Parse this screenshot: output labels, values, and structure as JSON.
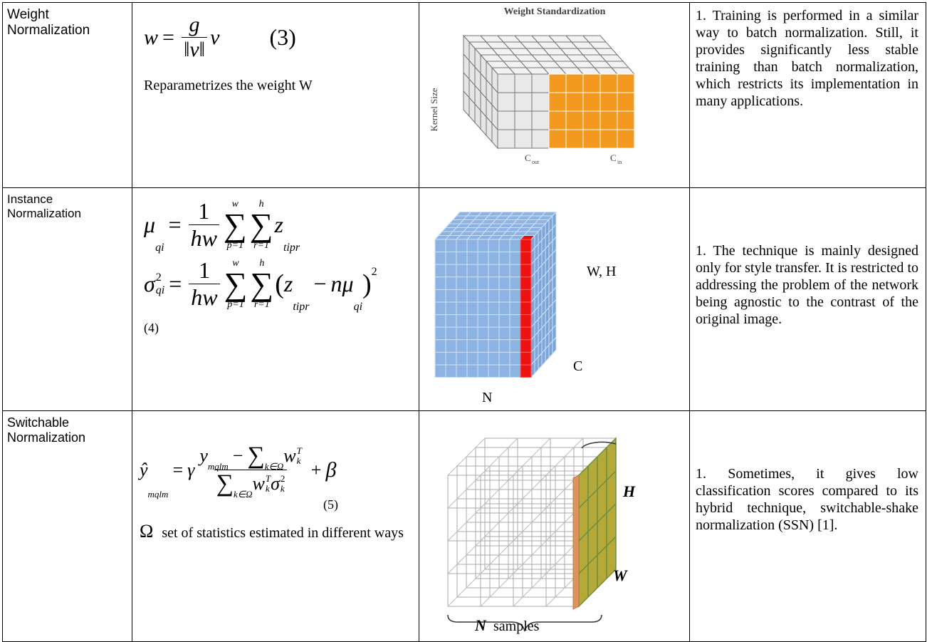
{
  "rows": [
    {
      "name": [
        "Weight",
        "Normalization"
      ],
      "formula": {
        "lhs": "w",
        "eq": "=",
        "num": "g",
        "den": "‖v‖",
        "rhs": "v",
        "number": "(3)"
      },
      "note": "Reparametrizes the weight W",
      "figure": {
        "title": "Weight Standardization",
        "axis": "Kernel Size",
        "c1": "C",
        "c1_sub": "out",
        "c2": "C",
        "c2_sub": "in"
      },
      "description": "1. Training is performed in a similar way to batch normalization. Still, it provides significantly less stable training than batch normalization, which restricts its implementation in many applications."
    },
    {
      "name": [
        "Instance",
        "Normalization"
      ],
      "mean": {
        "lhs": "μ",
        "lhs_sub": "qi",
        "eq": "=",
        "num": "1",
        "den": "hw",
        "sum1_top": "w",
        "sum1_bottom": "p=1",
        "sum2_top": "h",
        "sum2_bottom": "r=1",
        "sum": "∑",
        "body": "z",
        "body_sub": "tipr"
      },
      "variance": {
        "lhs": "σ",
        "lhs_sup": "2",
        "lhs_sub": "qi",
        "eq": "=",
        "num": "1",
        "den": "hw",
        "sum1_top": "w",
        "sum1_bottom": "p=1",
        "sum2_top": "h",
        "sum2_bottom": "r=1",
        "sum": "∑",
        "open": "(",
        "z": "z",
        "z_sub": "tipr",
        "minus": "−",
        "n": "n",
        "mu": "μ",
        "mu_sub": "qi",
        "close": ")",
        "power": "2"
      },
      "number": "(4)",
      "figure": {
        "wh": "W, H",
        "c": "C",
        "n": "N"
      },
      "description": "1. The technique is mainly designed only for style transfer. It is restricted to addressing the problem of the network being agnostic to the contrast of the original image."
    },
    {
      "name": [
        "Switchable",
        "Normalization"
      ],
      "formula": {
        "lhs": "ŷ",
        "lhs_sub": "mqlm",
        "eq": "=",
        "gamma": "γ",
        "y": "y",
        "y_sub": "mqlm",
        "minus": "−",
        "sum": "∑",
        "sum_sub": "k∈Ω",
        "w": "w",
        "w_sup": "T",
        "w_sub": "k",
        "sigma": "σ",
        "sigma_sup": "2",
        "sigma_sub": "k",
        "plus": "+",
        "beta": "β"
      },
      "number": "(5)",
      "note_symbol": "Ω",
      "note": "set of statistics estimated in different ways",
      "figure": {
        "h": "H",
        "w": "W",
        "n": "N",
        "samples": "samples"
      },
      "description": "1. Sometimes, it gives low classification scores compared to its hybrid technique, switchable-shake normalization (SSN) [1]."
    }
  ]
}
